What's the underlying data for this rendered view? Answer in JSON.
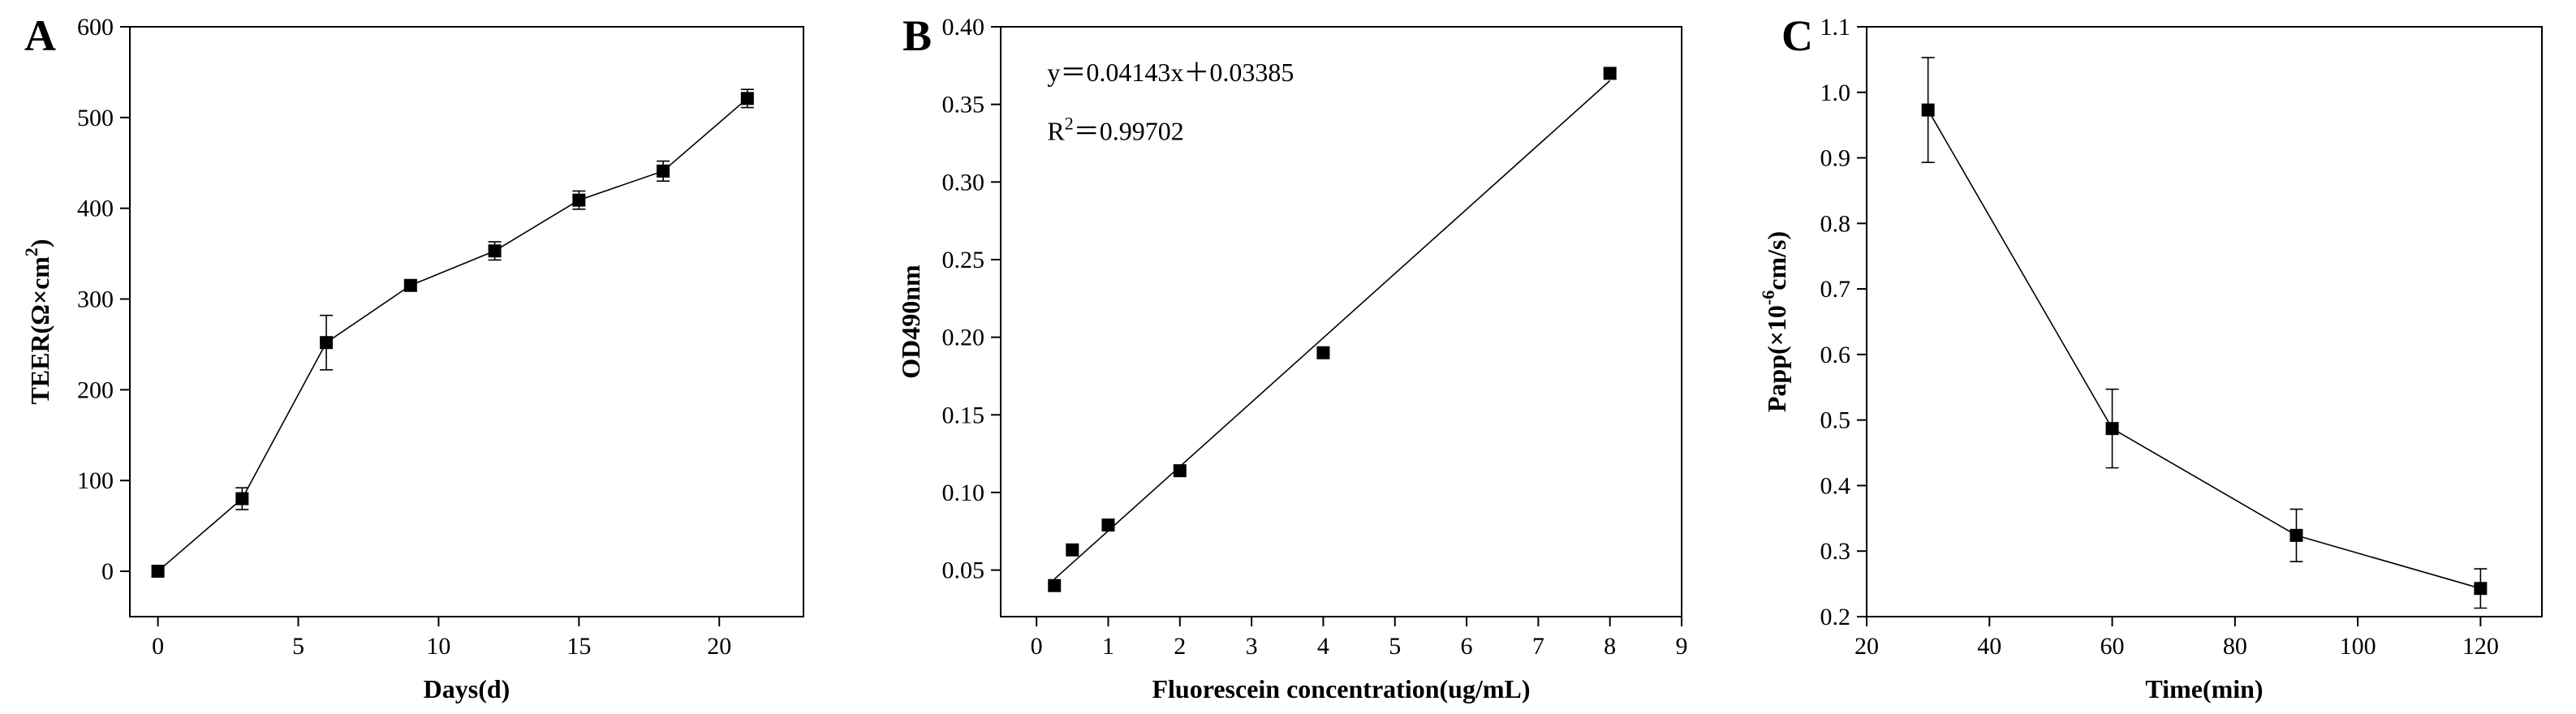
{
  "chart_data": [
    {
      "id": "A",
      "type": "line",
      "panel_label": "A",
      "xlabel": "Days(d)",
      "ylabel": "TEER(Ω×cm",
      "ylabel_sup": "2",
      "ylabel_close": ")",
      "xlim": [
        -1,
        23
      ],
      "ylim": [
        -50,
        600
      ],
      "xticks": [
        0,
        5,
        10,
        15,
        20
      ],
      "yticks": [
        0,
        100,
        200,
        300,
        400,
        500,
        600
      ],
      "decimals": 0,
      "show_line": true,
      "annotations": [],
      "series": [
        {
          "x": [
            0,
            3,
            6,
            9,
            12,
            15,
            18,
            21
          ],
          "y": [
            0,
            80,
            252,
            315,
            353,
            409,
            441,
            521
          ],
          "err": [
            3,
            12,
            30,
            5,
            10,
            10,
            11,
            10
          ]
        }
      ]
    },
    {
      "id": "B",
      "type": "scatter",
      "panel_label": "B",
      "xlabel": "Fluorescein concentration(ug/mL)",
      "ylabel": "OD490nm",
      "xlim": [
        -0.5,
        9
      ],
      "ylim": [
        0.02,
        0.4
      ],
      "xticks": [
        0,
        1,
        2,
        3,
        4,
        5,
        6,
        7,
        8,
        9
      ],
      "yticks": [
        0.05,
        0.1,
        0.15,
        0.2,
        0.25,
        0.3,
        0.35,
        0.4
      ],
      "decimals": 2,
      "show_line": false,
      "fit": {
        "slope": 0.04143,
        "intercept": 0.03385,
        "x_range": [
          0.25,
          8
        ]
      },
      "annotations": [
        {
          "id": "equation",
          "text": "y＝0.04143x＋0.03385",
          "sup": "",
          "x": 0.15,
          "y": 0.365
        },
        {
          "id": "r-squared",
          "text": "R",
          "sup": "2",
          "rest": "＝0.99702",
          "x": 0.15,
          "y": 0.327
        }
      ],
      "series": [
        {
          "x": [
            0.25,
            0.5,
            1,
            2,
            4,
            8
          ],
          "y": [
            0.04,
            0.063,
            0.079,
            0.114,
            0.19,
            0.37
          ],
          "err": []
        }
      ]
    },
    {
      "id": "C",
      "type": "line",
      "panel_label": "C",
      "xlabel": "Time(min)",
      "ylabel": "Papp(×10",
      "ylabel_sup": "-6",
      "ylabel_close": "cm/s)",
      "xlim": [
        20,
        130
      ],
      "ylim": [
        0.2,
        1.1
      ],
      "xticks": [
        20,
        40,
        60,
        80,
        100,
        120
      ],
      "yticks": [
        0.2,
        0.3,
        0.4,
        0.5,
        0.6,
        0.7,
        0.8,
        0.9,
        1.0,
        1.1
      ],
      "decimals": 1,
      "show_line": true,
      "annotations": [],
      "series": [
        {
          "x": [
            30,
            60,
            90,
            120
          ],
          "y": [
            0.973,
            0.487,
            0.324,
            0.243
          ],
          "err": [
            0.08,
            0.06,
            0.04,
            0.03
          ]
        }
      ]
    }
  ]
}
